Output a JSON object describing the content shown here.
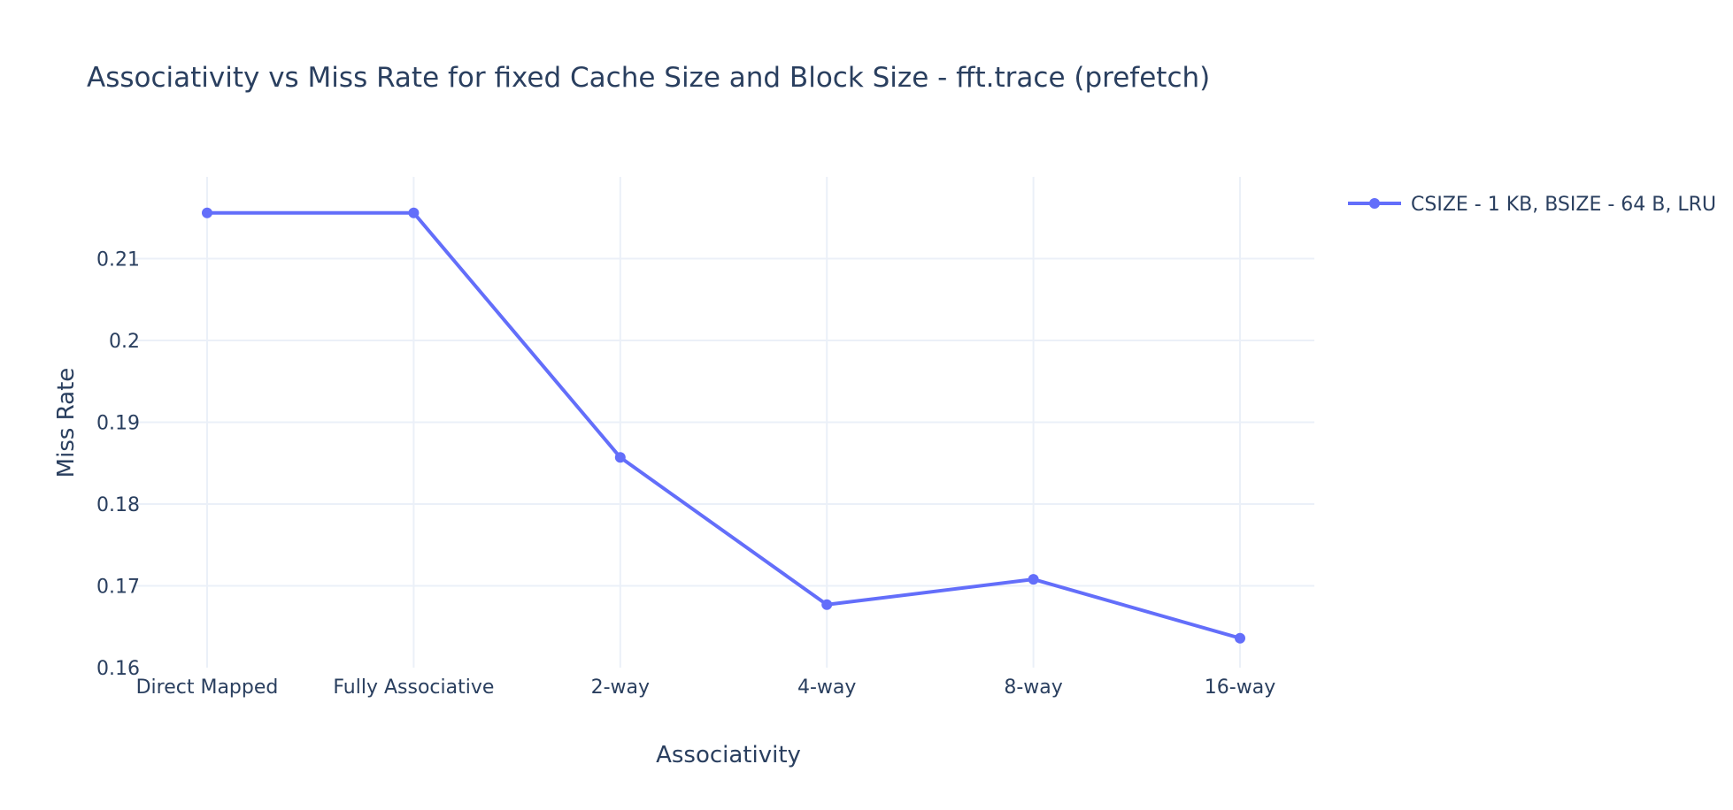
{
  "chart_data": {
    "type": "line",
    "title": "Associativity vs Miss Rate for fixed Cache Size and Block Size - fft.trace (prefetch)",
    "xlabel": "Associativity",
    "ylabel": "Miss Rate",
    "categories": [
      "Direct Mapped",
      "Fully Associative",
      "2-way",
      "4-way",
      "8-way",
      "16-way"
    ],
    "series": [
      {
        "name": "CSIZE - 1 KB, BSIZE - 64 B, LRU",
        "values": [
          0.2156,
          0.2156,
          0.1857,
          0.1677,
          0.1708,
          0.1636
        ],
        "color": "#636efa"
      }
    ],
    "ylim": [
      0.16,
      0.22
    ],
    "yticks": [
      0.16,
      0.17,
      0.18,
      0.19,
      0.2,
      0.21
    ],
    "ytick_labels": [
      "0.16",
      "0.17",
      "0.18",
      "0.19",
      "0.2",
      "0.21"
    ],
    "grid": true,
    "legend_position": "top-right",
    "colors": {
      "text": "#2a3f5f",
      "grid": "#ebf0f8",
      "background": "#ffffff"
    }
  }
}
